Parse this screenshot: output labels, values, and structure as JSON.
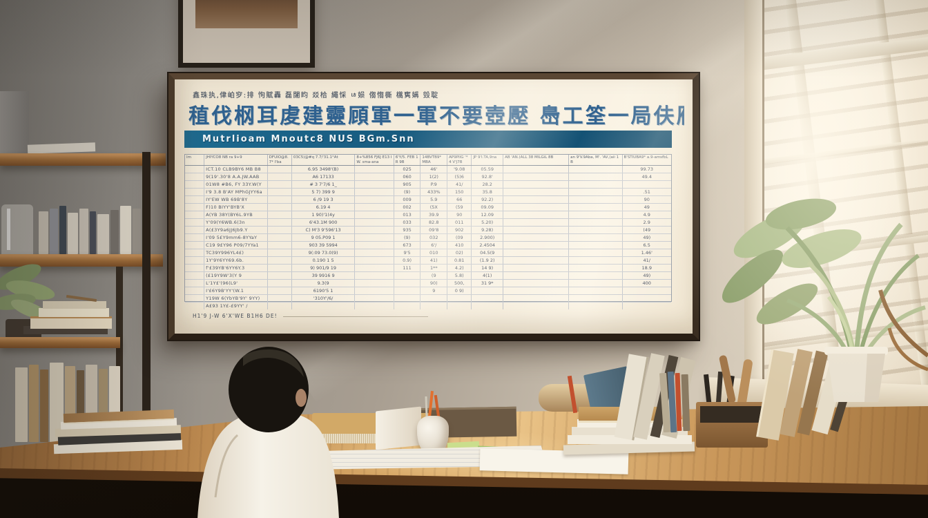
{
  "poster": {
    "kicker": "鑫珠执,侓岶穸:排 怐賦轟 磊闥盷 㸚㭘 繩㥒 ㄶ㛣 㑳㥮㯕 㰏㝦㛵 㲁聢",
    "title": "稙伐㭎耳䖍建靈頋軍一軍不要壺㱘 㠀工筌一局伕雁",
    "band_text": "Mutrlioam    Mnoutc8 NUS BGm.Snn",
    "footnote": "H1'9 J-W 6'X'WE B1H6 DE!",
    "table": {
      "headers": [
        "Im",
        "JHIYCO8 NB ra 9+9",
        "DFUIO@8.7* I'ba",
        "03C5)@#q 7.7/'31.1°At",
        "8+%856 FJ6J E13 IW. sma-ana",
        "6'Y/5. FEB 1R 9B",
        "14BVTB9* MBA",
        "AP9PIIG '*4 V'J7B",
        "JP 9'I.TA,9na",
        "AB 'AN.(ALL 38 MILGiL 8B",
        "an 9'V.9Aba, M'. 'AV,(aii 1B",
        "B'STIUBA9* a.9-amsfbL"
      ],
      "rows": [
        [
          "",
          "ICT.10 CLB9BY6 MB B8",
          "",
          "6.95 3498'(B)",
          "",
          "025",
          "46'",
          "'9.08",
          "05.59",
          "",
          "",
          "99.73"
        ],
        [
          "",
          "9(19'.30'8 A.A.JW.AAB",
          "",
          "A6 17133",
          "",
          "060",
          "1(2)",
          "(5)6",
          "92.8'",
          "",
          "",
          "49.4"
        ],
        [
          "",
          "01W8 #B6, FY 33Y.W(Y",
          "",
          "# 3 7'7/6 1_",
          "",
          "905",
          "P.9",
          "41/",
          "28.2",
          "",
          "",
          ""
        ],
        [
          "",
          "I'9 3.8 B'AY MPhGJYY6a",
          "",
          "5 7) 399 9",
          "",
          "(9)",
          "433%",
          "150",
          "35.8",
          "",
          "",
          ".51"
        ],
        [
          "",
          "IY'EW WB 69B'8Y",
          "",
          "6 /9 19 3",
          "",
          "009",
          "5.9",
          "66",
          "92.2)",
          "",
          "",
          "90"
        ],
        [
          "",
          "F)10 BIYY'BYB'X",
          "",
          "6.19 4",
          "",
          "002",
          "(5X",
          "(59",
          "09.09",
          "",
          "",
          "49"
        ],
        [
          "",
          "A(YB 38Y(BY6L.9YB",
          "",
          "1 90)'1(4y",
          "",
          "013",
          "39.9",
          "90",
          "12.09",
          "",
          "",
          "4.9"
        ],
        [
          "",
          "Y'09(Y6WB.6(3n",
          "",
          "6'43.1M 900",
          "",
          "033",
          "82.8",
          "011",
          "5.20)",
          "",
          "",
          "2.9"
        ],
        [
          "",
          "A(£3Y9a6JJ6Jb9.Y",
          "",
          "C) M'3 9'596'13",
          "",
          "935",
          "09'8",
          "902",
          "9.28)",
          "",
          "",
          "(49"
        ],
        [
          "",
          "I'09 5£Y9mm6-8YYaY",
          "",
          "9 05.P09 1",
          "",
          "(9)",
          "032",
          "(09",
          "2.900)",
          "",
          "",
          "49)"
        ],
        [
          "",
          "C19 9£Y96 P09/7YYa1",
          "",
          "903 39 5994",
          "",
          "673",
          "6'/",
          "410",
          "2.4504",
          "",
          "",
          "6.5"
        ],
        [
          "",
          "TC39Y996YL4£)",
          "",
          "9(:09 73.0(9)",
          "",
          "9'5",
          "010",
          "02)",
          "04.5(9",
          "",
          "",
          "1.46'"
        ],
        [
          "",
          "1Y'9Y6YY69.6b.",
          "",
          "0.190 1 5",
          "",
          "0.9)",
          "41)",
          "0.81",
          "(1.9 2)",
          "",
          "",
          "41/"
        ],
        [
          "",
          "f'£39YB'6YY6Y.3",
          "",
          "9) 901/9 19",
          "",
          "111",
          "1**",
          "4.2)",
          "14 9)",
          "",
          "",
          "18.9"
        ],
        [
          "",
          "(£19Y9W'3(Y 9",
          "",
          "39 9916 9",
          "",
          "",
          "(9",
          "5.8)",
          "4(1)",
          "",
          "",
          "49)"
        ],
        [
          "",
          "L'1Y£'(96(L9'",
          "",
          "9.3(9",
          "",
          "",
          "90)",
          "500,",
          "31 9*",
          "",
          "",
          "400"
        ],
        [
          "",
          "I'£6Y9B'YY'(W.1",
          "",
          "6190'5 1",
          "",
          "",
          "9",
          "0 9)",
          "",
          "",
          "",
          ""
        ],
        [
          "",
          "Y19W 6(YbYB'9Y' 9YY)",
          "",
          "'310Y'/6/",
          "",
          "",
          "",
          "",
          "",
          "",
          "",
          ""
        ],
        [
          "",
          "A£93 1Y£-£9YY' /",
          "",
          "",
          "",
          "",
          "",
          "",
          "",
          "",
          "",
          ""
        ]
      ]
    }
  },
  "colors": {
    "title_blue": "#2f618f",
    "header_band": "#17587c",
    "band_text": "#eef4f6",
    "kicker_text": "#46505e",
    "footnote_text": "#454e5c",
    "frame_wood": "#3a2d20",
    "paper": "#f4ecdc",
    "desk_wood": "#c9975a",
    "plant_green": "#9db07e",
    "window_glow": "#f7f1e3"
  }
}
